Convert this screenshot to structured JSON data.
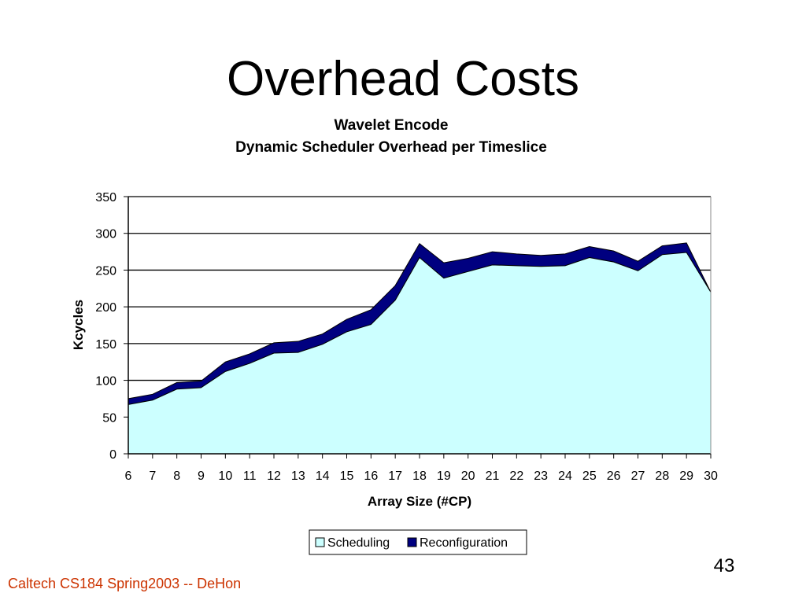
{
  "slide": {
    "title": "Overhead Costs",
    "footer": "Caltech CS184 Spring2003 -- DeHon",
    "page_number": "43"
  },
  "colors": {
    "scheduling": "#ccffff",
    "reconfiguration": "#000080",
    "gridline": "#000000",
    "footer_text": "#cc3300"
  },
  "chart_data": {
    "type": "area",
    "stacked": true,
    "title": "Wavelet Encode",
    "subtitle": "Dynamic Scheduler Overhead per Timeslice",
    "xlabel": "Array Size (#CP)",
    "ylabel": "Kcycles",
    "x": [
      6,
      7,
      8,
      9,
      10,
      11,
      12,
      13,
      14,
      15,
      16,
      17,
      18,
      19,
      20,
      21,
      22,
      23,
      24,
      25,
      26,
      27,
      28,
      29,
      30
    ],
    "ylim": [
      0,
      350
    ],
    "yticks": [
      0,
      50,
      100,
      150,
      200,
      250,
      300,
      350
    ],
    "grid": true,
    "legend_position": "bottom",
    "series": [
      {
        "name": "Scheduling",
        "values": [
          67,
          73,
          88,
          90,
          112,
          123,
          137,
          138,
          149,
          166,
          176,
          209,
          267,
          239,
          248,
          257,
          256,
          255,
          256,
          267,
          261,
          249,
          271,
          274,
          220
        ]
      },
      {
        "name": "Reconfiguration",
        "values": [
          8,
          8,
          9,
          9,
          13,
          13,
          14,
          15,
          14,
          17,
          20,
          20,
          19,
          21,
          18,
          18,
          16,
          15,
          16,
          15,
          15,
          13,
          12,
          13,
          0
        ]
      }
    ]
  }
}
